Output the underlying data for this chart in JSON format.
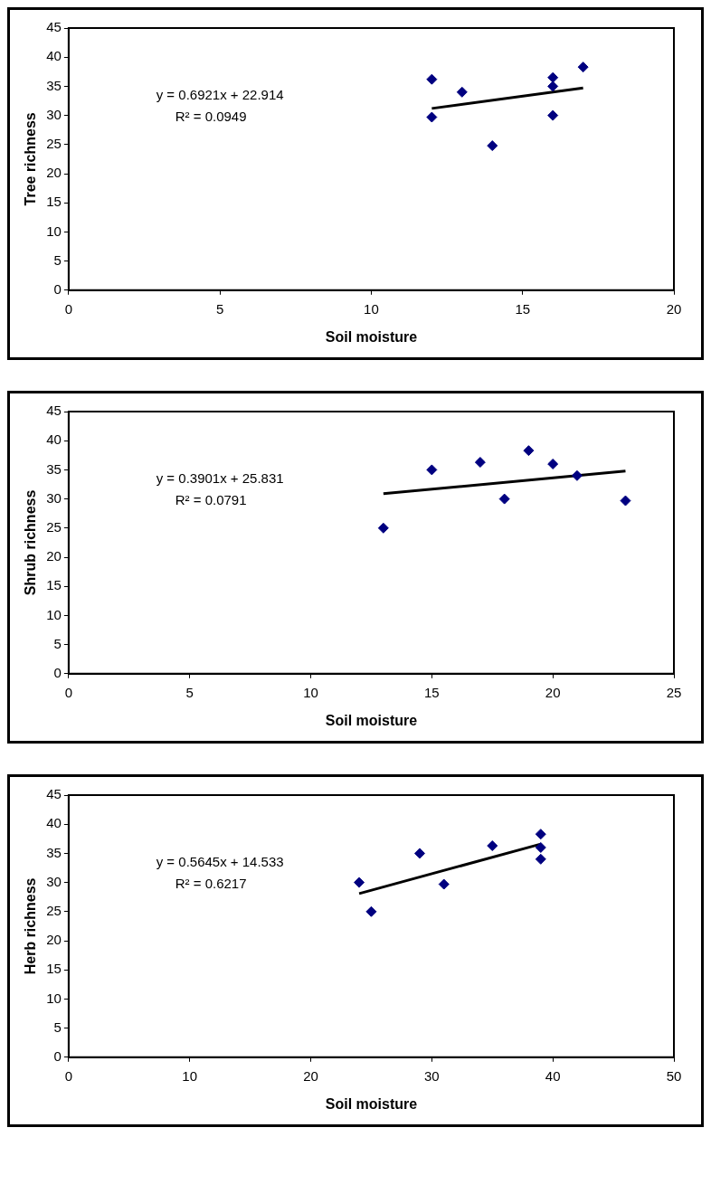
{
  "chart_data": [
    {
      "type": "scatter",
      "xlabel": "Soil moisture",
      "ylabel": "Tree richness",
      "xlim": [
        0,
        20
      ],
      "xticks": [
        0,
        5,
        10,
        15,
        20
      ],
      "ylim": [
        0,
        45
      ],
      "yticks": [
        0,
        5,
        10,
        15,
        20,
        25,
        30,
        35,
        40,
        45
      ],
      "grid": false,
      "annotations": [
        "y = 0.6921x + 22.914",
        "R² = 0.0949"
      ],
      "series": [
        {
          "type": "scatter",
          "color": "#000080",
          "marker": "diamond",
          "x": [
            12,
            12,
            13,
            14,
            16,
            16,
            16,
            17
          ],
          "values": [
            36.2,
            29.7,
            34,
            24.8,
            36.5,
            35,
            30,
            38.3
          ]
        },
        {
          "type": "line",
          "color": "#000000",
          "marker": "none",
          "x": [
            12,
            17
          ],
          "values": [
            31.2,
            34.7
          ]
        }
      ]
    },
    {
      "type": "scatter",
      "xlabel": "Soil moisture",
      "ylabel": "Shrub richness",
      "xlim": [
        0,
        25
      ],
      "xticks": [
        0,
        5,
        10,
        15,
        20,
        25
      ],
      "ylim": [
        0,
        45
      ],
      "yticks": [
        0,
        5,
        10,
        15,
        20,
        25,
        30,
        35,
        40,
        45
      ],
      "grid": false,
      "annotations": [
        "y = 0.3901x + 25.831",
        "R² = 0.0791"
      ],
      "series": [
        {
          "type": "scatter",
          "color": "#000080",
          "marker": "diamond",
          "x": [
            13,
            15,
            17,
            18,
            19,
            20,
            21,
            23
          ],
          "values": [
            25,
            35,
            36.3,
            30,
            38.3,
            36,
            34,
            29.7
          ]
        },
        {
          "type": "line",
          "color": "#000000",
          "marker": "none",
          "x": [
            13,
            23
          ],
          "values": [
            30.9,
            34.8
          ]
        }
      ]
    },
    {
      "type": "scatter",
      "xlabel": "Soil moisture",
      "ylabel": "Herb richness",
      "xlim": [
        0,
        50
      ],
      "xticks": [
        0,
        10,
        20,
        30,
        40,
        50
      ],
      "ylim": [
        0,
        45
      ],
      "yticks": [
        0,
        5,
        10,
        15,
        20,
        25,
        30,
        35,
        40,
        45
      ],
      "grid": false,
      "annotations": [
        "y = 0.5645x + 14.533",
        "R² = 0.6217"
      ],
      "series": [
        {
          "type": "scatter",
          "color": "#000080",
          "marker": "diamond",
          "x": [
            24,
            25,
            29,
            31,
            35,
            39,
            39,
            39
          ],
          "values": [
            30,
            25,
            35,
            29.7,
            36.3,
            38.3,
            36,
            34
          ]
        },
        {
          "type": "line",
          "color": "#000000",
          "marker": "none",
          "x": [
            24,
            39
          ],
          "values": [
            28.1,
            36.6
          ]
        }
      ]
    }
  ]
}
